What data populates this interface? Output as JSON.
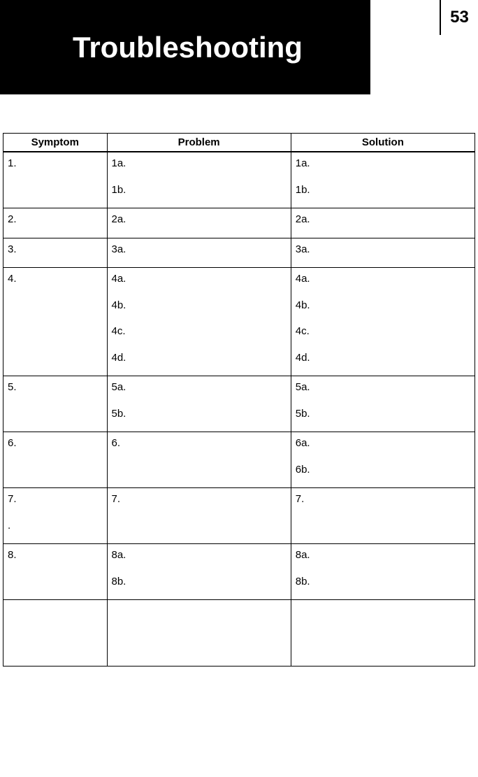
{
  "header": {
    "title": "Troubleshooting",
    "page_number": "53"
  },
  "table": {
    "columns": [
      "Symptom",
      "Problem",
      "Solution"
    ],
    "column_widths": [
      "22%",
      "39%",
      "39%"
    ],
    "rows": [
      {
        "symptom": [
          "1."
        ],
        "problem": [
          "1a.",
          "1b."
        ],
        "solution": [
          "1a.",
          "1b."
        ]
      },
      {
        "symptom": [
          "2."
        ],
        "problem": [
          "2a."
        ],
        "solution": [
          "2a."
        ]
      },
      {
        "symptom": [
          "3."
        ],
        "problem": [
          "3a."
        ],
        "solution": [
          "3a."
        ]
      },
      {
        "symptom": [
          "4."
        ],
        "problem": [
          "4a.",
          "4b.",
          "4c.",
          "4d."
        ],
        "solution": [
          "4a.",
          "4b.",
          "4c.",
          "4d."
        ]
      },
      {
        "symptom": [
          "5."
        ],
        "problem": [
          "5a.",
          "5b."
        ],
        "solution": [
          "5a.",
          "5b."
        ]
      },
      {
        "symptom": [
          "6."
        ],
        "problem": [
          "6."
        ],
        "solution": [
          "6a.",
          "6b."
        ]
      },
      {
        "symptom": [
          "7.",
          "."
        ],
        "problem": [
          "7."
        ],
        "solution": [
          "7."
        ]
      },
      {
        "symptom": [
          "8."
        ],
        "problem": [
          "8a.",
          "8b."
        ],
        "solution": [
          "8a.",
          "8b."
        ]
      },
      {
        "symptom": [],
        "problem": [],
        "solution": []
      }
    ]
  },
  "styling": {
    "background_color": "#ffffff",
    "header_bg": "#000000",
    "header_text_color": "#ffffff",
    "title_fontsize": 42,
    "page_number_fontsize": 24,
    "table_border_color": "#000000",
    "table_header_fontsize": 15,
    "table_cell_fontsize": 15,
    "font_family": "Arial"
  }
}
